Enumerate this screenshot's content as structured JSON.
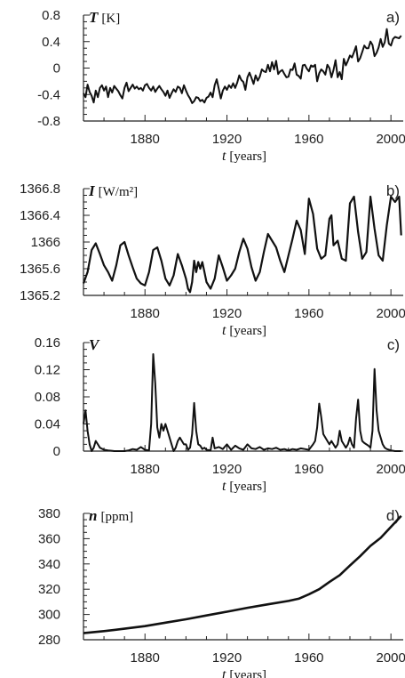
{
  "chart_data": [
    {
      "type": "line",
      "panel_label": "a)",
      "var_symbol": "T",
      "var_unit": "[K]",
      "x_symbol": "t",
      "x_unit": "[years]",
      "xlim": [
        1850,
        2006
      ],
      "ylim": [
        -0.8,
        0.8
      ],
      "xticks": [
        1880,
        1920,
        1960,
        2000
      ],
      "yticks": [
        -0.8,
        -0.4,
        0,
        0.4,
        0.8
      ],
      "ytick_labels": [
        "-0.8",
        "-0.4",
        "0",
        "0.4",
        "0.8"
      ],
      "x": [
        1850,
        1851,
        1852,
        1853,
        1854,
        1855,
        1856,
        1857,
        1858,
        1859,
        1860,
        1861,
        1862,
        1863,
        1864,
        1865,
        1866,
        1867,
        1868,
        1869,
        1870,
        1871,
        1872,
        1873,
        1874,
        1875,
        1876,
        1877,
        1878,
        1879,
        1880,
        1881,
        1882,
        1883,
        1884,
        1885,
        1886,
        1887,
        1888,
        1889,
        1890,
        1891,
        1892,
        1893,
        1894,
        1895,
        1896,
        1897,
        1898,
        1899,
        1900,
        1901,
        1902,
        1903,
        1904,
        1905,
        1906,
        1907,
        1908,
        1909,
        1910,
        1911,
        1912,
        1913,
        1914,
        1915,
        1916,
        1917,
        1918,
        1919,
        1920,
        1921,
        1922,
        1923,
        1924,
        1925,
        1926,
        1927,
        1928,
        1929,
        1930,
        1931,
        1932,
        1933,
        1934,
        1935,
        1936,
        1937,
        1938,
        1939,
        1940,
        1941,
        1942,
        1943,
        1944,
        1945,
        1946,
        1947,
        1948,
        1949,
        1950,
        1951,
        1952,
        1953,
        1954,
        1955,
        1956,
        1957,
        1958,
        1959,
        1960,
        1961,
        1962,
        1963,
        1964,
        1965,
        1966,
        1967,
        1968,
        1969,
        1970,
        1971,
        1972,
        1973,
        1974,
        1975,
        1976,
        1977,
        1978,
        1979,
        1980,
        1981,
        1982,
        1983,
        1984,
        1985,
        1986,
        1987,
        1988,
        1989,
        1990,
        1991,
        1992,
        1993,
        1994,
        1995,
        1996,
        1997,
        1998,
        1999,
        2000,
        2001,
        2002,
        2003,
        2004,
        2005
      ],
      "values": [
        -0.38,
        -0.44,
        -0.25,
        -0.36,
        -0.42,
        -0.52,
        -0.34,
        -0.44,
        -0.3,
        -0.26,
        -0.34,
        -0.28,
        -0.44,
        -0.3,
        -0.37,
        -0.27,
        -0.31,
        -0.35,
        -0.41,
        -0.46,
        -0.3,
        -0.22,
        -0.35,
        -0.3,
        -0.25,
        -0.31,
        -0.28,
        -0.32,
        -0.3,
        -0.34,
        -0.26,
        -0.24,
        -0.3,
        -0.34,
        -0.28,
        -0.36,
        -0.31,
        -0.27,
        -0.32,
        -0.36,
        -0.42,
        -0.34,
        -0.45,
        -0.38,
        -0.32,
        -0.36,
        -0.28,
        -0.3,
        -0.38,
        -0.26,
        -0.34,
        -0.41,
        -0.46,
        -0.53,
        -0.5,
        -0.44,
        -0.45,
        -0.5,
        -0.48,
        -0.52,
        -0.45,
        -0.43,
        -0.37,
        -0.44,
        -0.26,
        -0.17,
        -0.31,
        -0.46,
        -0.34,
        -0.28,
        -0.33,
        -0.26,
        -0.3,
        -0.23,
        -0.3,
        -0.22,
        -0.11,
        -0.18,
        -0.21,
        -0.33,
        -0.14,
        -0.07,
        -0.15,
        -0.24,
        -0.11,
        -0.19,
        -0.13,
        -0.02,
        -0.05,
        -0.06,
        0.05,
        -0.05,
        0.09,
        -0.02,
        0.11,
        -0.09,
        -0.05,
        -0.03,
        -0.09,
        -0.14,
        -0.13,
        -0.02,
        -0.03,
        0.07,
        -0.1,
        -0.12,
        -0.16,
        0.04,
        0.05,
        -0.01,
        -0.05,
        0.04,
        0.02,
        0.05,
        -0.2,
        -0.08,
        -0.02,
        -0.05,
        -0.1,
        0.05,
        0.0,
        -0.14,
        -0.03,
        0.12,
        -0.14,
        -0.06,
        -0.17,
        0.14,
        0.04,
        0.11,
        0.19,
        0.16,
        0.24,
        0.33,
        0.1,
        0.15,
        0.24,
        0.34,
        0.3,
        0.3,
        0.4,
        0.35,
        0.18,
        0.23,
        0.31,
        0.44,
        0.32,
        0.39,
        0.59,
        0.37,
        0.34,
        0.44,
        0.47,
        0.46,
        0.45,
        0.49
      ]
    },
    {
      "type": "line",
      "panel_label": "b)",
      "var_symbol": "I",
      "var_unit": "[W/m²]",
      "x_symbol": "t",
      "x_unit": "[years]",
      "xlim": [
        1850,
        2006
      ],
      "ylim": [
        1365.2,
        1366.8
      ],
      "xticks": [
        1880,
        1920,
        1960,
        2000
      ],
      "yticks": [
        1365.2,
        1365.6,
        1366.0,
        1366.4,
        1366.8
      ],
      "ytick_labels": [
        "1365.2",
        "1365.6",
        "1366",
        "1366.4",
        "1366.8"
      ],
      "x": [
        1850,
        1852,
        1854,
        1856,
        1858,
        1860,
        1862,
        1864,
        1866,
        1868,
        1870,
        1872,
        1874,
        1876,
        1878,
        1880,
        1882,
        1884,
        1886,
        1888,
        1890,
        1892,
        1894,
        1896,
        1898,
        1900,
        1901,
        1902,
        1903,
        1904,
        1905,
        1906,
        1907,
        1908,
        1909,
        1910,
        1912,
        1914,
        1916,
        1918,
        1920,
        1922,
        1924,
        1926,
        1928,
        1930,
        1932,
        1934,
        1936,
        1938,
        1940,
        1942,
        1944,
        1946,
        1948,
        1950,
        1952,
        1954,
        1956,
        1958,
        1960,
        1962,
        1964,
        1966,
        1968,
        1970,
        1971,
        1972,
        1974,
        1976,
        1978,
        1980,
        1982,
        1984,
        1986,
        1988,
        1990,
        1992,
        1994,
        1996,
        1998,
        2000,
        2002,
        2004,
        2005
      ],
      "values": [
        1365.38,
        1365.55,
        1365.88,
        1365.98,
        1365.82,
        1365.65,
        1365.55,
        1365.42,
        1365.65,
        1365.95,
        1366.0,
        1365.8,
        1365.62,
        1365.45,
        1365.38,
        1365.35,
        1365.55,
        1365.88,
        1365.92,
        1365.72,
        1365.45,
        1365.35,
        1365.5,
        1365.82,
        1365.65,
        1365.45,
        1365.3,
        1365.25,
        1365.4,
        1365.72,
        1365.55,
        1365.7,
        1365.6,
        1365.7,
        1365.55,
        1365.4,
        1365.3,
        1365.45,
        1365.8,
        1365.62,
        1365.42,
        1365.5,
        1365.6,
        1365.85,
        1366.05,
        1365.9,
        1365.62,
        1365.42,
        1365.55,
        1365.85,
        1366.12,
        1366.02,
        1365.92,
        1365.72,
        1365.55,
        1365.8,
        1366.05,
        1366.32,
        1366.18,
        1365.82,
        1366.65,
        1366.42,
        1365.9,
        1365.75,
        1365.8,
        1366.35,
        1366.4,
        1365.95,
        1366.02,
        1365.75,
        1365.72,
        1366.58,
        1366.68,
        1366.15,
        1365.75,
        1365.85,
        1366.68,
        1366.2,
        1365.8,
        1365.72,
        1366.25,
        1366.68,
        1366.6,
        1366.68,
        1366.1
      ]
    },
    {
      "type": "line",
      "panel_label": "c)",
      "var_symbol": "V",
      "var_unit": "",
      "x_symbol": "t",
      "x_unit": "[years]",
      "xlim": [
        1850,
        2006
      ],
      "ylim": [
        0,
        0.16
      ],
      "xticks": [
        1880,
        1920,
        1960,
        2000
      ],
      "yticks": [
        0,
        0.04,
        0.08,
        0.12,
        0.16
      ],
      "ytick_labels": [
        "0",
        "0.04",
        "0.08",
        "0.12",
        "0.16"
      ],
      "x": [
        1850,
        1851,
        1852,
        1853,
        1854,
        1855,
        1856,
        1857,
        1858,
        1860,
        1862,
        1865,
        1868,
        1870,
        1872,
        1874,
        1876,
        1878,
        1880,
        1882,
        1883,
        1884,
        1885,
        1886,
        1887,
        1888,
        1889,
        1890,
        1891,
        1892,
        1893,
        1894,
        1895,
        1896,
        1897,
        1898,
        1899,
        1900,
        1901,
        1902,
        1903,
        1904,
        1905,
        1906,
        1907,
        1908,
        1909,
        1910,
        1912,
        1913,
        1914,
        1916,
        1918,
        1920,
        1922,
        1924,
        1926,
        1928,
        1930,
        1932,
        1934,
        1936,
        1938,
        1940,
        1942,
        1944,
        1946,
        1948,
        1950,
        1952,
        1954,
        1956,
        1958,
        1960,
        1961,
        1962,
        1963,
        1964,
        1965,
        1966,
        1967,
        1968,
        1969,
        1970,
        1971,
        1972,
        1973,
        1974,
        1975,
        1976,
        1977,
        1978,
        1979,
        1980,
        1981,
        1982,
        1983,
        1984,
        1985,
        1986,
        1987,
        1988,
        1989,
        1990,
        1991,
        1992,
        1993,
        1994,
        1995,
        1996,
        1997,
        1998,
        2000,
        2002,
        2004,
        2005
      ],
      "values": [
        0.04,
        0.06,
        0.03,
        0.01,
        0.0,
        0.005,
        0.015,
        0.01,
        0.005,
        0.002,
        0.001,
        0.0,
        0.0,
        0.0,
        0.001,
        0.003,
        0.002,
        0.006,
        0.002,
        0.001,
        0.04,
        0.143,
        0.1,
        0.035,
        0.02,
        0.04,
        0.03,
        0.04,
        0.03,
        0.02,
        0.01,
        0.0,
        0.005,
        0.015,
        0.02,
        0.015,
        0.01,
        0.01,
        0.002,
        0.005,
        0.025,
        0.071,
        0.03,
        0.01,
        0.008,
        0.003,
        0.005,
        0.002,
        0.001,
        0.02,
        0.004,
        0.006,
        0.003,
        0.01,
        0.002,
        0.008,
        0.004,
        0.002,
        0.01,
        0.004,
        0.003,
        0.006,
        0.002,
        0.004,
        0.003,
        0.005,
        0.002,
        0.003,
        0.001,
        0.003,
        0.002,
        0.004,
        0.003,
        0.002,
        0.006,
        0.01,
        0.015,
        0.035,
        0.07,
        0.05,
        0.025,
        0.02,
        0.015,
        0.01,
        0.015,
        0.01,
        0.005,
        0.01,
        0.03,
        0.015,
        0.01,
        0.005,
        0.01,
        0.02,
        0.01,
        0.005,
        0.048,
        0.076,
        0.03,
        0.015,
        0.012,
        0.01,
        0.008,
        0.005,
        0.03,
        0.121,
        0.06,
        0.03,
        0.02,
        0.01,
        0.005,
        0.003,
        0.001,
        0.0,
        0.0,
        0.0
      ]
    },
    {
      "type": "line",
      "panel_label": "d)",
      "var_symbol": "n",
      "var_unit": "[ppm]",
      "x_symbol": "t",
      "x_unit": "[years]",
      "xlim": [
        1850,
        2006
      ],
      "ylim": [
        280,
        380
      ],
      "xticks": [
        1880,
        1920,
        1960,
        2000
      ],
      "yticks": [
        280,
        300,
        320,
        340,
        360,
        380
      ],
      "ytick_labels": [
        "280",
        "300",
        "320",
        "340",
        "360",
        "380"
      ],
      "x": [
        1850,
        1860,
        1870,
        1880,
        1890,
        1900,
        1910,
        1920,
        1930,
        1940,
        1950,
        1955,
        1960,
        1965,
        1970,
        1975,
        1980,
        1985,
        1990,
        1995,
        2000,
        2005
      ],
      "values": [
        285.2,
        286.8,
        288.7,
        290.8,
        293.5,
        296.2,
        299.2,
        302.2,
        305.3,
        308.0,
        310.7,
        312.5,
        316.0,
        320.0,
        325.7,
        331.1,
        338.7,
        346.1,
        354.3,
        360.6,
        369.4,
        378.0
      ]
    }
  ]
}
